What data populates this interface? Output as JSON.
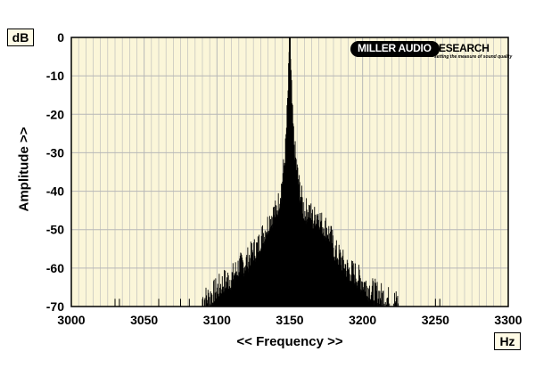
{
  "chart_data": {
    "type": "area",
    "title": "",
    "xlabel": "<< Frequency >>",
    "ylabel": "Amplitude >>",
    "x_unit": "Hz",
    "y_unit": "dB",
    "xlim": [
      3000,
      3300
    ],
    "ylim": [
      -70,
      0
    ],
    "xticks": [
      3000,
      3050,
      3100,
      3150,
      3200,
      3250,
      3300
    ],
    "yticks": [
      0,
      -10,
      -20,
      -30,
      -40,
      -50,
      -60,
      -70
    ],
    "grid": true,
    "series": [
      {
        "x": [
          3030,
          3060,
          3075,
          3085,
          3095,
          3100,
          3105,
          3110,
          3115,
          3120,
          3125,
          3128,
          3131,
          3134,
          3137,
          3140,
          3142,
          3144,
          3146,
          3147,
          3148,
          3149,
          3150,
          3151,
          3152,
          3153,
          3154,
          3156,
          3158,
          3160,
          3163,
          3166,
          3169,
          3172,
          3175,
          3178,
          3181,
          3185,
          3190,
          3195,
          3200,
          3205,
          3210,
          3215,
          3220,
          3230,
          3250
        ],
        "values": [
          -69,
          -69,
          -68,
          -67,
          -66,
          -64,
          -62,
          -61,
          -58,
          -57,
          -54,
          -53,
          -50,
          -48,
          -45,
          -44,
          -42,
          -38,
          -32,
          -28,
          -20,
          -10,
          0,
          -10,
          -20,
          -26,
          -30,
          -36,
          -40,
          -44,
          -43,
          -46,
          -44,
          -47,
          -48,
          -50,
          -54,
          -56,
          -59,
          -60,
          -62,
          -64,
          -65,
          -66,
          -67,
          -68,
          -67
        ]
      }
    ],
    "colors": {
      "plot_background": "#fbf6d9",
      "grid": "#b7b7b7",
      "spectrum": "#000000",
      "unit_box_background": "#fffbe6"
    }
  },
  "logo": {
    "main_white": "MILLER AUDIO",
    "main_black": "RESEARCH",
    "tagline": "setting the measure of sound quality"
  }
}
